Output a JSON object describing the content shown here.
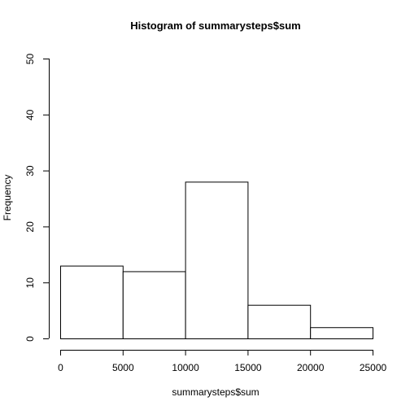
{
  "chart_data": {
    "type": "bar",
    "title": "Histogram of summarysteps$sum",
    "xlabel": "summarysteps$sum",
    "ylabel": "Frequency",
    "bins": [
      {
        "from": 0,
        "to": 5000,
        "count": 13
      },
      {
        "from": 5000,
        "to": 10000,
        "count": 12
      },
      {
        "from": 10000,
        "to": 15000,
        "count": 28
      },
      {
        "from": 15000,
        "to": 20000,
        "count": 6
      },
      {
        "from": 20000,
        "to": 25000,
        "count": 2
      }
    ],
    "xlim": [
      0,
      25000
    ],
    "ylim": [
      0,
      50
    ],
    "x_ticks": [
      "0",
      "5000",
      "10000",
      "15000",
      "20000",
      "25000"
    ],
    "y_ticks": [
      "0",
      "10",
      "20",
      "30",
      "40",
      "50"
    ],
    "grid": false,
    "bar_fill": "#ffffff",
    "bar_stroke": "#000000"
  }
}
